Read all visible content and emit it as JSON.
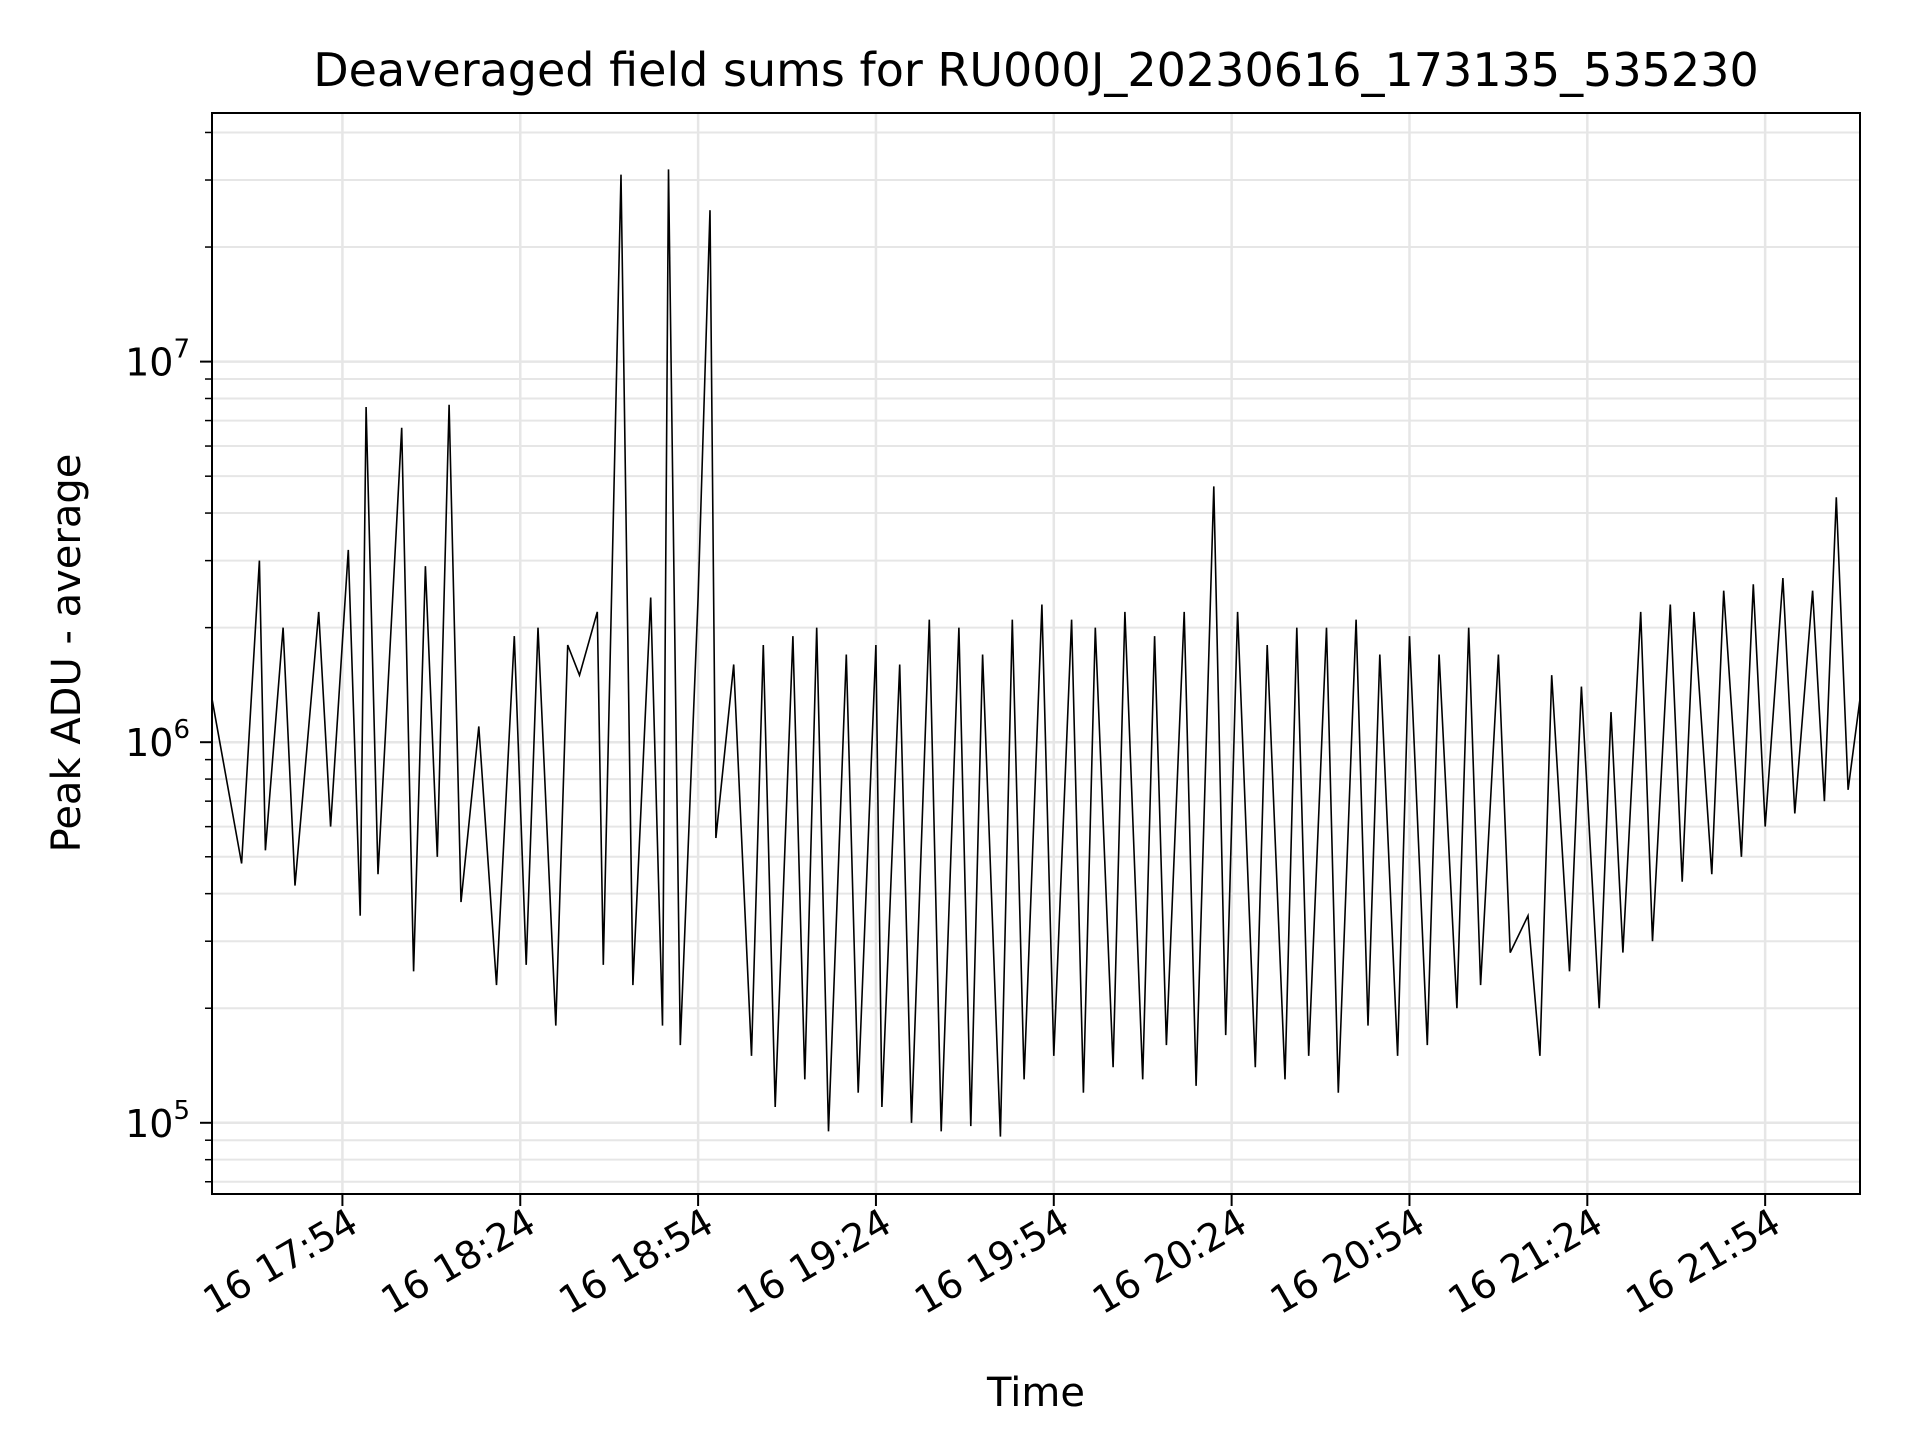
{
  "chart_data": {
    "type": "line",
    "title": "Deaveraged field sums for RU000J_20230616_173135_535230",
    "xlabel": "Time",
    "ylabel": "Peak ADU - average",
    "yscale": "log",
    "grid": true,
    "line_color": "#000000",
    "grid_color": "#e6e6e6",
    "x_tick_labels": [
      "16 17:54",
      "16 18:24",
      "16 18:54",
      "16 19:24",
      "16 19:54",
      "16 20:24",
      "16 20:54",
      "16 21:24",
      "16 21:54"
    ],
    "x_ticks": [
      "2023-06-16T17:54",
      "2023-06-16T18:24",
      "2023-06-16T18:54",
      "2023-06-16T19:24",
      "2023-06-16T19:54",
      "2023-06-16T20:24",
      "2023-06-16T20:54",
      "2023-06-16T21:24",
      "2023-06-16T21:54"
    ],
    "xlim": [
      "2023-06-16T17:32",
      "2023-06-16T22:10"
    ],
    "y_ticks": [
      {
        "value": 100000,
        "base": "10",
        "exp": "5"
      },
      {
        "value": 1000000,
        "base": "10",
        "exp": "6"
      },
      {
        "value": 10000000,
        "base": "10",
        "exp": "7"
      }
    ],
    "ylim": [
      65000,
      45000000
    ],
    "series": [
      {
        "x": [
          "2023-06-16T17:32",
          "2023-06-16T17:37",
          "2023-06-16T17:40",
          "2023-06-16T17:41",
          "2023-06-16T17:44",
          "2023-06-16T17:46",
          "2023-06-16T17:50",
          "2023-06-16T17:52",
          "2023-06-16T17:55",
          "2023-06-16T17:57",
          "2023-06-16T17:58",
          "2023-06-16T18:00",
          "2023-06-16T18:04",
          "2023-06-16T18:06",
          "2023-06-16T18:08",
          "2023-06-16T18:10",
          "2023-06-16T18:12",
          "2023-06-16T18:14",
          "2023-06-16T18:17",
          "2023-06-16T18:20",
          "2023-06-16T18:23",
          "2023-06-16T18:25",
          "2023-06-16T18:27",
          "2023-06-16T18:30",
          "2023-06-16T18:32",
          "2023-06-16T18:34",
          "2023-06-16T18:37",
          "2023-06-16T18:38",
          "2023-06-16T18:41",
          "2023-06-16T18:43",
          "2023-06-16T18:46",
          "2023-06-16T18:48",
          "2023-06-16T18:49",
          "2023-06-16T18:51",
          "2023-06-16T18:54",
          "2023-06-16T18:56",
          "2023-06-16T18:57",
          "2023-06-16T19:00",
          "2023-06-16T19:03",
          "2023-06-16T19:05",
          "2023-06-16T19:07",
          "2023-06-16T19:10",
          "2023-06-16T19:12",
          "2023-06-16T19:14",
          "2023-06-16T19:16",
          "2023-06-16T19:19",
          "2023-06-16T19:21",
          "2023-06-16T19:24",
          "2023-06-16T19:25",
          "2023-06-16T19:28",
          "2023-06-16T19:30",
          "2023-06-16T19:33",
          "2023-06-16T19:35",
          "2023-06-16T19:38",
          "2023-06-16T19:40",
          "2023-06-16T19:42",
          "2023-06-16T19:45",
          "2023-06-16T19:47",
          "2023-06-16T19:49",
          "2023-06-16T19:52",
          "2023-06-16T19:54",
          "2023-06-16T19:57",
          "2023-06-16T19:59",
          "2023-06-16T20:01",
          "2023-06-16T20:04",
          "2023-06-16T20:06",
          "2023-06-16T20:09",
          "2023-06-16T20:11",
          "2023-06-16T20:13",
          "2023-06-16T20:16",
          "2023-06-16T20:18",
          "2023-06-16T20:21",
          "2023-06-16T20:23",
          "2023-06-16T20:25",
          "2023-06-16T20:28",
          "2023-06-16T20:30",
          "2023-06-16T20:33",
          "2023-06-16T20:35",
          "2023-06-16T20:37",
          "2023-06-16T20:40",
          "2023-06-16T20:42",
          "2023-06-16T20:45",
          "2023-06-16T20:47",
          "2023-06-16T20:49",
          "2023-06-16T20:52",
          "2023-06-16T20:54",
          "2023-06-16T20:57",
          "2023-06-16T20:59",
          "2023-06-16T21:02",
          "2023-06-16T21:04",
          "2023-06-16T21:06",
          "2023-06-16T21:09",
          "2023-06-16T21:11",
          "2023-06-16T21:14",
          "2023-06-16T21:16",
          "2023-06-16T21:18",
          "2023-06-16T21:21",
          "2023-06-16T21:23",
          "2023-06-16T21:26",
          "2023-06-16T21:28",
          "2023-06-16T21:30",
          "2023-06-16T21:33",
          "2023-06-16T21:35",
          "2023-06-16T21:38",
          "2023-06-16T21:40",
          "2023-06-16T21:42",
          "2023-06-16T21:45",
          "2023-06-16T21:47",
          "2023-06-16T21:50",
          "2023-06-16T21:52",
          "2023-06-16T21:54",
          "2023-06-16T21:57",
          "2023-06-16T21:59",
          "2023-06-16T22:02",
          "2023-06-16T22:04",
          "2023-06-16T22:06",
          "2023-06-16T22:08",
          "2023-06-16T22:10"
        ],
        "y": [
          1300000,
          480000,
          3000000,
          520000,
          2000000,
          420000,
          2200000,
          600000,
          3200000,
          350000,
          7600000,
          450000,
          6700000,
          250000,
          2900000,
          500000,
          7700000,
          380000,
          1100000,
          230000,
          1900000,
          260000,
          2000000,
          180000,
          1800000,
          1500000,
          2200000,
          260000,
          31000000,
          230000,
          2400000,
          180000,
          32000000,
          160000,
          2400000,
          25000000,
          560000,
          1600000,
          150000,
          1800000,
          110000,
          1900000,
          130000,
          2000000,
          95000,
          1700000,
          120000,
          1800000,
          110000,
          1600000,
          100000,
          2100000,
          95000,
          2000000,
          98000,
          1700000,
          92000,
          2100000,
          130000,
          2300000,
          150000,
          2100000,
          120000,
          2000000,
          140000,
          2200000,
          130000,
          1900000,
          160000,
          2200000,
          125000,
          4700000,
          170000,
          2200000,
          140000,
          1800000,
          130000,
          2000000,
          150000,
          2000000,
          120000,
          2100000,
          180000,
          1700000,
          150000,
          1900000,
          160000,
          1700000,
          200000,
          2000000,
          230000,
          1700000,
          280000,
          350000,
          150000,
          1500000,
          250000,
          1400000,
          200000,
          1200000,
          280000,
          2200000,
          300000,
          2300000,
          430000,
          2200000,
          450000,
          2500000,
          500000,
          2600000,
          600000,
          2700000,
          650000,
          2500000,
          700000,
          4400000,
          750000,
          1300000
        ]
      }
    ]
  }
}
